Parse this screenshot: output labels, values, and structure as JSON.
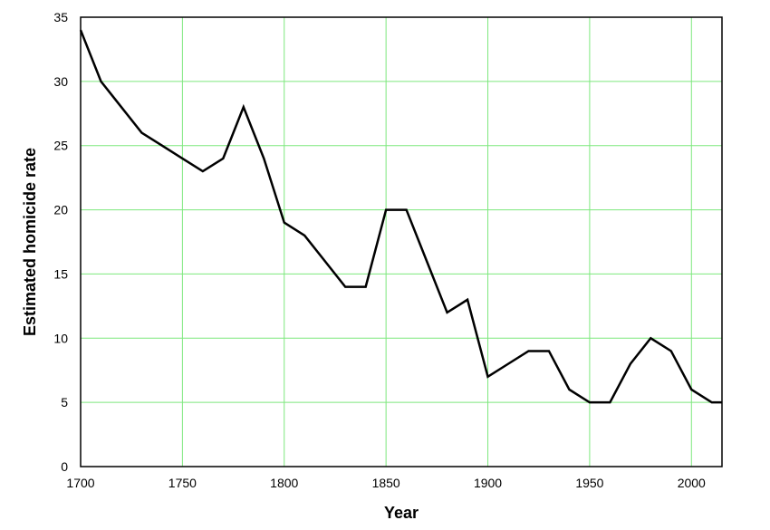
{
  "chart_data": {
    "type": "line",
    "x_label": "Year",
    "y_label": "Estimated homicide rate",
    "x": [
      1700,
      1710,
      1730,
      1740,
      1750,
      1760,
      1770,
      1780,
      1790,
      1800,
      1810,
      1820,
      1830,
      1840,
      1850,
      1860,
      1870,
      1880,
      1890,
      1900,
      1910,
      1920,
      1930,
      1940,
      1950,
      1960,
      1970,
      1980,
      1990,
      2000,
      2010,
      2015
    ],
    "series": [
      {
        "name": "Estimated homicide rate",
        "color": "#000000",
        "values": [
          34,
          30,
          26,
          25,
          24,
          23,
          24,
          28,
          24,
          19,
          18,
          16,
          14,
          14,
          20,
          20,
          16,
          12,
          13,
          7,
          8,
          9,
          9,
          6,
          5,
          5,
          8,
          10,
          9,
          6,
          5,
          5
        ]
      }
    ],
    "xlim": [
      1700,
      2015
    ],
    "xticks": [
      1700,
      1750,
      1800,
      1850,
      1900,
      1950,
      2000
    ],
    "ylim": [
      0,
      35
    ],
    "yticks": [
      0,
      5,
      10,
      15,
      20,
      25,
      30,
      35
    ],
    "grid": true,
    "grid_color": "#7de87d"
  }
}
